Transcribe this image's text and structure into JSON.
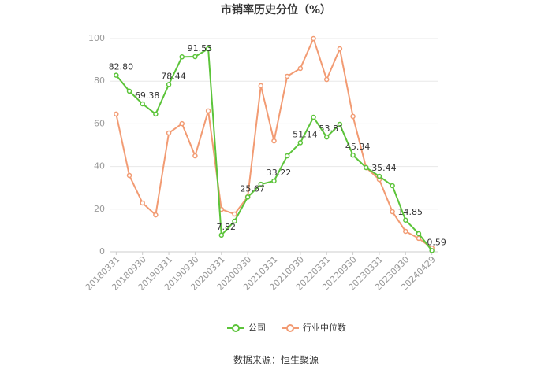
{
  "chart_data": {
    "type": "line",
    "title": "市销率历史分位（%）",
    "categories": [
      "20180331",
      null,
      "20180930",
      null,
      "20190331",
      null,
      "20190930",
      null,
      "20200331",
      null,
      "20200930",
      null,
      "20210331",
      null,
      "20210930",
      null,
      "20220331",
      null,
      "20220930",
      null,
      "20230331",
      null,
      "20230930",
      null,
      "20240429"
    ],
    "series": [
      {
        "name": "公司",
        "color": "#5cc43a",
        "values": [
          82.8,
          75.3,
          69.38,
          64.6,
          78.44,
          91.4,
          91.53,
          95.2,
          7.82,
          14.4,
          25.67,
          31.7,
          33.22,
          45.0,
          51.14,
          63.1,
          53.81,
          59.8,
          45.34,
          39.5,
          35.44,
          31.0,
          14.85,
          8.5,
          0.59
        ],
        "value_labels": [
          "82.80",
          null,
          "69.38",
          null,
          "78.44",
          null,
          "91.53",
          null,
          "7.82",
          null,
          "25.67",
          null,
          "33.22",
          null,
          "51.14",
          null,
          "53.81",
          null,
          "45.34",
          null,
          "35.44",
          null,
          "14.85",
          null,
          "0.59"
        ]
      },
      {
        "name": "行业中位数",
        "color": "#f29b73",
        "values": [
          64.6,
          35.8,
          22.9,
          17.3,
          55.7,
          60.1,
          45.0,
          66.1,
          19.9,
          17.7,
          25.8,
          77.9,
          52.0,
          82.3,
          86.0,
          100,
          80.8,
          95.2,
          63.5,
          39.5,
          33.9,
          18.8,
          9.6,
          6.3,
          1.8
        ]
      }
    ],
    "ylim": [
      0,
      100
    ],
    "yticks": [
      0,
      20,
      40,
      60,
      80,
      100
    ],
    "grid": true,
    "legend": "bottom",
    "source": "数据来源：恒生聚源"
  }
}
